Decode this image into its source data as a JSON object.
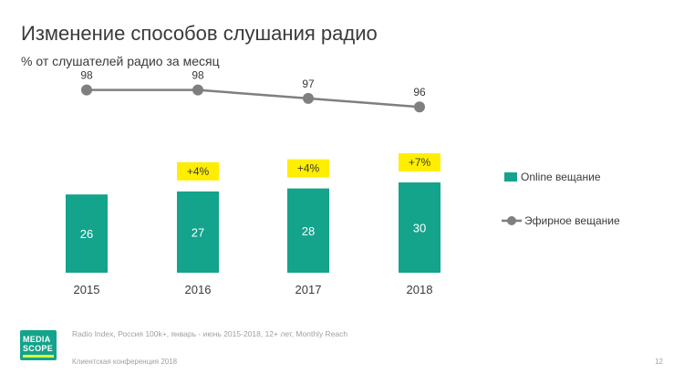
{
  "slide": {
    "title": "Изменение способов слушания радио",
    "subtitle": "% от слушателей радио за месяц",
    "source": "Radio Index, Россия 100k+, январь - июнь 2015-2018, 12+ лет, Monthly Reach",
    "footer": "Клиентская конференция 2018",
    "page_number": "12",
    "logo_line1": "MEDIA",
    "logo_line2": "SCOPE"
  },
  "colors": {
    "online_bar": "#14a38b",
    "broadcast_line": "#7f7f7f",
    "growth_badge": "#ffee00"
  },
  "chart_data": {
    "type": "bar",
    "categories": [
      "2015",
      "2016",
      "2017",
      "2018"
    ],
    "series": [
      {
        "name": "Online вещание",
        "kind": "bar",
        "values": [
          26,
          27,
          28,
          30
        ]
      },
      {
        "name": "Эфирное вещание",
        "kind": "line",
        "values": [
          98,
          98,
          97,
          96
        ]
      }
    ],
    "growth_labels": [
      "",
      "+4%",
      "+4%",
      "+7%"
    ],
    "title": "Изменение способов слушания радио",
    "subtitle": "% от слушателей радио за месяц",
    "legend_position": "right",
    "grid": false
  }
}
